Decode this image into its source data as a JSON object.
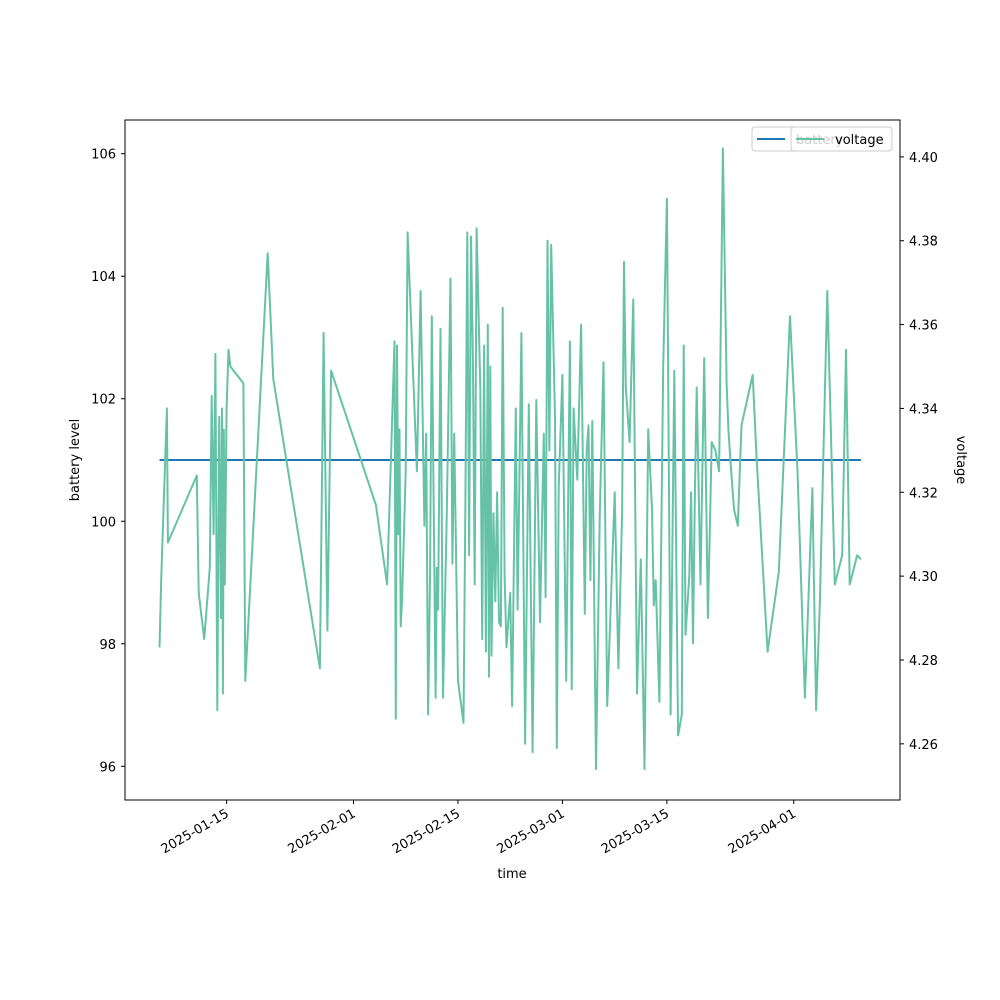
{
  "chart_data": {
    "type": "line",
    "xlabel": "time",
    "x_ticks": [
      "2025-01-15",
      "2025-02-01",
      "2025-02-15",
      "2025-03-01",
      "2025-03-15",
      "2025-04-01"
    ],
    "y_left": {
      "label": "battery level",
      "ylim": [
        95.45,
        106.55
      ],
      "ticks": [
        96,
        98,
        100,
        102,
        104,
        106
      ]
    },
    "y_right": {
      "label": "voltage",
      "ylim": [
        4.2466,
        4.4088
      ],
      "ticks": [
        "4.26",
        "4.28",
        "4.30",
        "4.32",
        "4.34",
        "4.36",
        "4.38",
        "4.40"
      ],
      "tick_values": [
        4.26,
        4.28,
        4.3,
        4.32,
        4.34,
        4.36,
        4.38,
        4.4
      ]
    },
    "x_range": [
      "2025-01-01T09:07:00",
      "2025-04-15T05:46:00"
    ],
    "grid": false,
    "legend_placement": "top-right",
    "series": [
      {
        "name": "battery",
        "axis": "left",
        "color": "#1f77b4",
        "x": [
          "2025-01-06",
          "2025-04-10"
        ],
        "y": [
          101,
          101
        ]
      },
      {
        "name": "voltage",
        "axis": "right",
        "color": "#66c2a5",
        "x": [
          "2025-01-06T00:00",
          "2025-01-06T06:00",
          "2025-01-07T00:00",
          "2025-01-07T03:00",
          "2025-01-11T00:00",
          "2025-01-11T06:00",
          "2025-01-12T00:00",
          "2025-01-12T18:00",
          "2025-01-13T00:00",
          "2025-01-13T06:00",
          "2025-01-13T12:00",
          "2025-01-13T18:00",
          "2025-01-14T00:00",
          "2025-01-14T06:00",
          "2025-01-14T09:00",
          "2025-01-14T12:00",
          "2025-01-14T15:00",
          "2025-01-14T18:00",
          "2025-01-15T00:00",
          "2025-01-15T06:00",
          "2025-01-15T12:00",
          "2025-01-17T06:00",
          "2025-01-17T12:00",
          "2025-01-20T12:00",
          "2025-01-21T06:00",
          "2025-01-27T12:00",
          "2025-01-28T00:00",
          "2025-01-28T12:00",
          "2025-01-29T00:00",
          "2025-02-04T00:00",
          "2025-02-05T12:00",
          "2025-02-05T18:00",
          "2025-02-06T12:00",
          "2025-02-06T16:00",
          "2025-02-06T20:00",
          "2025-02-07T00:00",
          "2025-02-07T04:00",
          "2025-02-07T08:00",
          "2025-02-07T12:00",
          "2025-02-08T00:00",
          "2025-02-08T06:00",
          "2025-02-09T12:00",
          "2025-02-10T00:00",
          "2025-02-10T12:00",
          "2025-02-10T18:00",
          "2025-02-11T00:00",
          "2025-02-11T06:00",
          "2025-02-11T12:00",
          "2025-02-12T00:00",
          "2025-02-12T04:00",
          "2025-02-12T08:00",
          "2025-02-12T16:00",
          "2025-02-13T00:00",
          "2025-02-13T12:00",
          "2025-02-14T00:00",
          "2025-02-14T06:00",
          "2025-02-14T12:00",
          "2025-02-15T00:00",
          "2025-02-15T18:00",
          "2025-02-16T00:00",
          "2025-02-16T06:00",
          "2025-02-16T12:00",
          "2025-02-16T18:00",
          "2025-02-17T00:00",
          "2025-02-17T06:00",
          "2025-02-17T12:00",
          "2025-02-18T00:00",
          "2025-02-18T06:00",
          "2025-02-18T12:00",
          "2025-02-18T18:00",
          "2025-02-19T00:00",
          "2025-02-19T04:00",
          "2025-02-19T08:00",
          "2025-02-19T12:00",
          "2025-02-19T18:00",
          "2025-02-20T00:00",
          "2025-02-20T06:00",
          "2025-02-20T12:00",
          "2025-02-20T18:00",
          "2025-02-21T00:00",
          "2025-02-21T06:00",
          "2025-02-21T12:00",
          "2025-02-22T00:00",
          "2025-02-22T06:00",
          "2025-02-22T18:00",
          "2025-02-23T00:00",
          "2025-02-23T12:00",
          "2025-02-24T00:00",
          "2025-02-24T12:00",
          "2025-02-25T00:00",
          "2025-02-25T12:00",
          "2025-02-26T00:00",
          "2025-02-26T12:00",
          "2025-02-26T18:00",
          "2025-02-27T00:00",
          "2025-02-27T06:00",
          "2025-02-27T12:00",
          "2025-02-28T00:00",
          "2025-02-28T06:00",
          "2025-02-28T12:00",
          "2025-03-01T00:00",
          "2025-03-01T12:00",
          "2025-03-02T00:00",
          "2025-03-02T06:00",
          "2025-03-02T12:00",
          "2025-03-03T00:00",
          "2025-03-03T12:00",
          "2025-03-04T00:00",
          "2025-03-04T06:00",
          "2025-03-04T12:00",
          "2025-03-04T18:00",
          "2025-03-05T00:00",
          "2025-03-05T12:00",
          "2025-03-06T00:00",
          "2025-03-06T12:00",
          "2025-03-07T00:00",
          "2025-03-08T00:00",
          "2025-03-08T12:00",
          "2025-03-09T00:00",
          "2025-03-09T06:00",
          "2025-03-09T12:00",
          "2025-03-10T00:00",
          "2025-03-10T12:00",
          "2025-03-11T00:00",
          "2025-03-11T12:00",
          "2025-03-12T00:00",
          "2025-03-12T12:00",
          "2025-03-13T00:00",
          "2025-03-13T06:00",
          "2025-03-13T12:00",
          "2025-03-14T00:00",
          "2025-03-14T12:00",
          "2025-03-15T00:00",
          "2025-03-15T12:00",
          "2025-03-16T00:00",
          "2025-03-16T12:00",
          "2025-03-17T00:00",
          "2025-03-17T06:00",
          "2025-03-17T12:00",
          "2025-03-18T00:00",
          "2025-03-18T06:00",
          "2025-03-18T12:00",
          "2025-03-18T18:00",
          "2025-03-19T00:00",
          "2025-03-19T12:00",
          "2025-03-20T00:00",
          "2025-03-20T12:00",
          "2025-03-21T00:00",
          "2025-03-21T12:00",
          "2025-03-22T00:00",
          "2025-03-22T12:00",
          "2025-03-23T00:00",
          "2025-03-23T06:00",
          "2025-03-23T12:00",
          "2025-03-24T00:00",
          "2025-03-24T12:00",
          "2025-03-25T00:00",
          "2025-03-26T12:00",
          "2025-03-27T00:00",
          "2025-03-28T12:00",
          "2025-03-30T00:00",
          "2025-03-31T12:00",
          "2025-04-01T12:00",
          "2025-04-02T12:00",
          "2025-04-03T12:00",
          "2025-04-04T00:00",
          "2025-04-04T12:00",
          "2025-04-05T12:00",
          "2025-04-06T12:00",
          "2025-04-07T12:00",
          "2025-04-08T00:00",
          "2025-04-08T12:00",
          "2025-04-09T12:00",
          "2025-04-10T00:00"
        ],
        "y": [
          4.283,
          4.3,
          4.34,
          4.308,
          4.324,
          4.296,
          4.285,
          4.302,
          4.343,
          4.31,
          4.353,
          4.268,
          4.338,
          4.29,
          4.34,
          4.272,
          4.335,
          4.298,
          4.34,
          4.354,
          4.35,
          4.346,
          4.275,
          4.377,
          4.347,
          4.278,
          4.358,
          4.287,
          4.349,
          4.317,
          4.298,
          4.312,
          4.356,
          4.266,
          4.355,
          4.31,
          4.335,
          4.288,
          4.294,
          4.325,
          4.382,
          4.325,
          4.368,
          4.312,
          4.334,
          4.267,
          4.299,
          4.362,
          4.271,
          4.302,
          4.292,
          4.359,
          4.271,
          4.315,
          4.371,
          4.303,
          4.334,
          4.275,
          4.265,
          4.318,
          4.382,
          4.305,
          4.381,
          4.352,
          4.298,
          4.383,
          4.345,
          4.285,
          4.355,
          4.282,
          4.36,
          4.276,
          4.35,
          4.281,
          4.315,
          4.294,
          4.32,
          4.289,
          4.288,
          4.364,
          4.3,
          4.283,
          4.296,
          4.269,
          4.34,
          4.292,
          4.358,
          4.26,
          4.341,
          4.258,
          4.342,
          4.289,
          4.334,
          4.295,
          4.38,
          4.33,
          4.379,
          4.338,
          4.259,
          4.321,
          4.348,
          4.275,
          4.356,
          4.273,
          4.34,
          4.323,
          4.36,
          4.291,
          4.33,
          4.336,
          4.299,
          4.337,
          4.254,
          4.314,
          4.351,
          4.269,
          4.32,
          4.278,
          4.315,
          4.375,
          4.345,
          4.332,
          4.366,
          4.272,
          4.304,
          4.254,
          4.335,
          4.316,
          4.293,
          4.299,
          4.27,
          4.35,
          4.39,
          4.267,
          4.349,
          4.262,
          4.267,
          4.355,
          4.286,
          4.3,
          4.32,
          4.284,
          4.32,
          4.345,
          4.298,
          4.352,
          4.29,
          4.332,
          4.33,
          4.325,
          4.402,
          4.346,
          4.335,
          4.328,
          4.316,
          4.312,
          4.336,
          4.348,
          4.329,
          4.282,
          4.301,
          4.362,
          4.325,
          4.271,
          4.321,
          4.268,
          4.294,
          4.368,
          4.298,
          4.305,
          4.354,
          4.298,
          4.305,
          4.304
        ]
      }
    ]
  }
}
